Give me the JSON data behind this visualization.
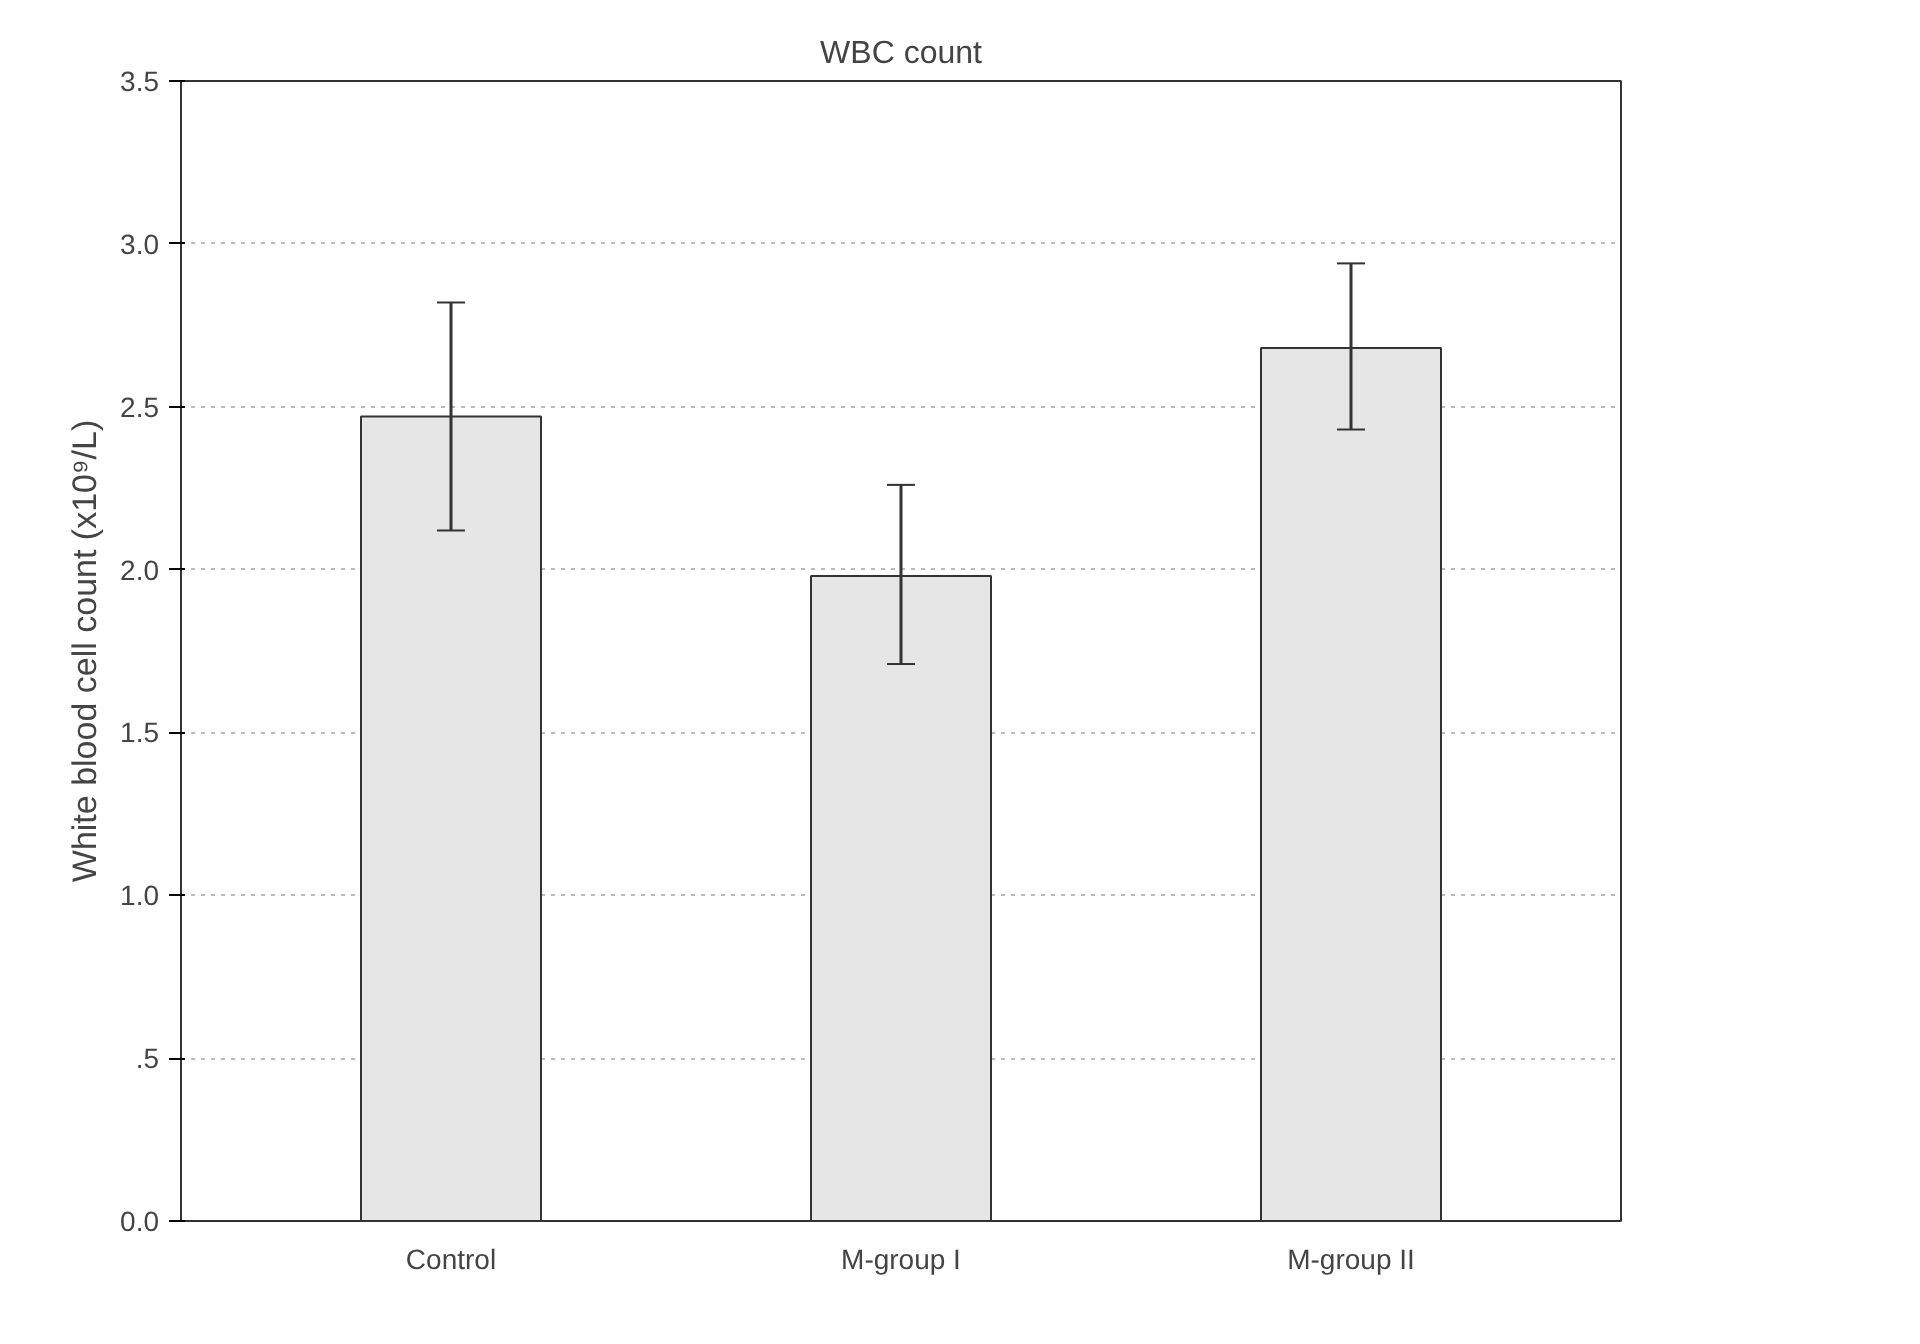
{
  "chart_data": {
    "type": "bar",
    "title": "WBC count",
    "ylabel": "White blood cell count (x10⁹/L)",
    "categories": [
      "Control",
      "M-group I",
      "M-group II"
    ],
    "values": [
      2.47,
      1.98,
      2.68
    ],
    "errors": [
      [
        2.12,
        2.82
      ],
      [
        1.71,
        2.26
      ],
      [
        2.43,
        2.94
      ]
    ],
    "color": "#e6e6e6",
    "ylim": [
      0,
      3.5
    ],
    "yticks": [
      {
        "value": 0,
        "label": "0.0"
      },
      {
        "value": 0.5,
        "label": ".5"
      },
      {
        "value": 1,
        "label": "1.0"
      },
      {
        "value": 1.5,
        "label": "1.5"
      },
      {
        "value": 2,
        "label": "2.0"
      },
      {
        "value": 2.5,
        "label": "2.5"
      },
      {
        "value": 3,
        "label": "3.0"
      },
      {
        "value": 3.5,
        "label": "3.5"
      }
    ],
    "grid": "y"
  }
}
